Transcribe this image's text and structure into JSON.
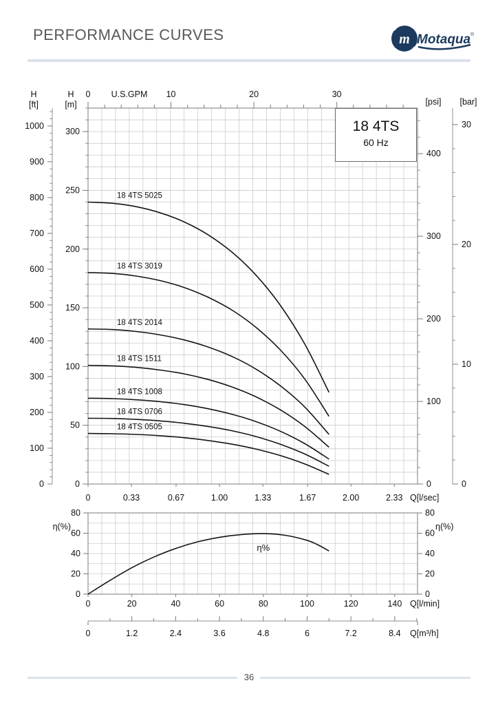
{
  "header": {
    "title": "PERFORMANCE CURVES",
    "logo": {
      "name": "Motaqua",
      "mark": "m",
      "registered": "®"
    }
  },
  "model_box": {
    "model": "18 4TS",
    "frequency": "60 Hz"
  },
  "footer": {
    "page_number": "36"
  },
  "colors": {
    "navy": "#1c3a5e",
    "rule": "#dbe2ec",
    "grid": "#cbcbcb",
    "axis": "#8f8f8f",
    "tick": "#7a7a7a",
    "curve": "#141414",
    "text": "#111111"
  },
  "chart_data": [
    {
      "id": "head-flow",
      "type": "line",
      "title": "18 4TS 60 Hz head vs flow",
      "grid": true,
      "x_axes": {
        "gpm": {
          "label": "U.S.GPM",
          "ticks": [
            0,
            10,
            20,
            30
          ]
        },
        "lsec": {
          "label": "Q[l/sec]",
          "ticks": [
            "0",
            "0.33",
            "0.67",
            "1.00",
            "1.33",
            "1.67",
            "2.00",
            "2.33"
          ]
        }
      },
      "y_axes": {
        "ft": {
          "label_top": "H",
          "label_unit": "[ft]",
          "ticks": [
            0,
            100,
            200,
            300,
            400,
            500,
            600,
            700,
            800,
            900,
            1000
          ],
          "max": 1040
        },
        "m": {
          "label_top": "H",
          "label_unit": "[m]",
          "ticks": [
            0,
            50,
            100,
            150,
            200,
            250,
            300
          ],
          "max": 320
        },
        "psi": {
          "label_unit": "[psi]",
          "ticks": [
            0,
            100,
            200,
            300,
            400
          ],
          "max": 455
        },
        "bar": {
          "label_unit": "[bar]",
          "ticks": [
            0,
            10,
            20,
            30
          ],
          "max": 31
        }
      },
      "series": [
        {
          "name": "18 4TS 5025",
          "points": [
            [
              0,
              240
            ],
            [
              11,
              239
            ],
            [
              22,
              236.1
            ],
            [
              33,
              230.8
            ],
            [
              44,
              223.0
            ],
            [
              55,
              211.9
            ],
            [
              66,
              196.9
            ],
            [
              77,
              177.1
            ],
            [
              88,
              151.5
            ],
            [
              99,
              118.9
            ],
            [
              110,
              78
            ]
          ]
        },
        {
          "name": "18 4TS 3019",
          "points": [
            [
              0,
              180
            ],
            [
              11,
              179.3
            ],
            [
              22,
              177.0
            ],
            [
              33,
              173.1
            ],
            [
              44,
              167.2
            ],
            [
              55,
              158.8
            ],
            [
              66,
              147.7
            ],
            [
              77,
              132.8
            ],
            [
              88,
              113.7
            ],
            [
              99,
              89.2
            ],
            [
              110,
              57.6
            ]
          ]
        },
        {
          "name": "18 4TS 2014",
          "points": [
            [
              0,
              132
            ],
            [
              11,
              131.5
            ],
            [
              22,
              129.8
            ],
            [
              33,
              126.9
            ],
            [
              44,
              122.6
            ],
            [
              55,
              116.5
            ],
            [
              66,
              108.3
            ],
            [
              77,
              97.4
            ],
            [
              88,
              83.3
            ],
            [
              99,
              65.4
            ],
            [
              110,
              42.2
            ]
          ]
        },
        {
          "name": "18 4TS 1511",
          "points": [
            [
              0,
              101
            ],
            [
              11,
              100.6
            ],
            [
              22,
              99.3
            ],
            [
              33,
              97.0
            ],
            [
              44,
              93.7
            ],
            [
              55,
              88.9
            ],
            [
              66,
              82.4
            ],
            [
              77,
              73.9
            ],
            [
              88,
              62.9
            ],
            [
              99,
              48.9
            ],
            [
              110,
              31.3
            ]
          ]
        },
        {
          "name": "18 4TS 1008",
          "points": [
            [
              0,
              73
            ],
            [
              11,
              72.7
            ],
            [
              22,
              71.7
            ],
            [
              33,
              70.1
            ],
            [
              44,
              67.6
            ],
            [
              55,
              64.0
            ],
            [
              66,
              59.2
            ],
            [
              77,
              52.9
            ],
            [
              88,
              44.7
            ],
            [
              99,
              34.3
            ],
            [
              110,
              21.2
            ]
          ]
        },
        {
          "name": "18 4TS 0706",
          "points": [
            [
              0,
              56
            ],
            [
              11,
              55.8
            ],
            [
              22,
              55.0
            ],
            [
              33,
              53.7
            ],
            [
              44,
              51.7
            ],
            [
              55,
              48.9
            ],
            [
              66,
              45.2
            ],
            [
              77,
              40.2
            ],
            [
              88,
              33.7
            ],
            [
              99,
              25.5
            ],
            [
              110,
              15.1
            ]
          ]
        },
        {
          "name": "18 4TS 0505",
          "points": [
            [
              0,
              43
            ],
            [
              11,
              42.8
            ],
            [
              22,
              42.2
            ],
            [
              33,
              41.1
            ],
            [
              44,
              39.4
            ],
            [
              55,
              37.0
            ],
            [
              66,
              33.8
            ],
            [
              77,
              29.6
            ],
            [
              88,
              24.1
            ],
            [
              99,
              17.0
            ],
            [
              110,
              8.2
            ]
          ]
        }
      ]
    },
    {
      "id": "efficiency",
      "type": "line",
      "title": "Efficiency",
      "grid": true,
      "y_axis": {
        "label": "η(%)",
        "ticks": [
          0,
          20,
          40,
          60,
          80
        ]
      },
      "x_axes": {
        "lmin": {
          "label": "Q[l/min]",
          "ticks": [
            "0",
            "20",
            "40",
            "60",
            "80",
            "100",
            "120",
            "140"
          ]
        },
        "m3h": {
          "label": "Q[m³/h]",
          "ticks": [
            "0",
            "1.2",
            "2.4",
            "3.6",
            "4.8",
            "6",
            "7.2",
            "8.4"
          ]
        }
      },
      "series": [
        {
          "name": "η%",
          "points": [
            [
              0,
              0
            ],
            [
              10,
              13.5
            ],
            [
              20,
              26
            ],
            [
              30,
              36.5
            ],
            [
              40,
              45
            ],
            [
              50,
              51.5
            ],
            [
              60,
              56
            ],
            [
              70,
              58.7
            ],
            [
              80,
              59.6
            ],
            [
              90,
              58
            ],
            [
              100,
              53
            ],
            [
              105,
              48.5
            ],
            [
              110,
              42.5
            ]
          ]
        }
      ]
    }
  ]
}
